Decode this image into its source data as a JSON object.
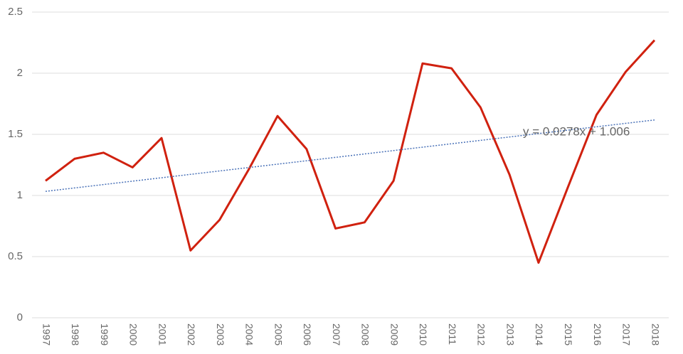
{
  "chart_data": {
    "type": "line",
    "categories": [
      "1997",
      "1998",
      "1999",
      "2000",
      "2001",
      "2002",
      "2003",
      "2004",
      "2005",
      "2006",
      "2007",
      "2008",
      "2009",
      "2010",
      "2011",
      "2012",
      "2013",
      "2014",
      "2015",
      "2016",
      "2017",
      "2018"
    ],
    "series": [
      {
        "color": "#d0210f",
        "values": [
          1.12,
          1.3,
          1.35,
          1.23,
          1.47,
          0.55,
          0.8,
          1.21,
          1.65,
          1.38,
          0.73,
          0.78,
          1.12,
          2.08,
          2.04,
          1.72,
          1.17,
          0.45,
          1.06,
          1.66,
          2.01,
          2.27
        ]
      }
    ],
    "trendline": {
      "label": "y = 0.0278x + 1.006",
      "slope": 0.0278,
      "intercept": 1.006,
      "color": "#4a72b8"
    },
    "ylim": [
      0,
      2.5
    ],
    "yticks": [
      0,
      0.5,
      1,
      1.5,
      2,
      2.5
    ],
    "grid": true
  }
}
